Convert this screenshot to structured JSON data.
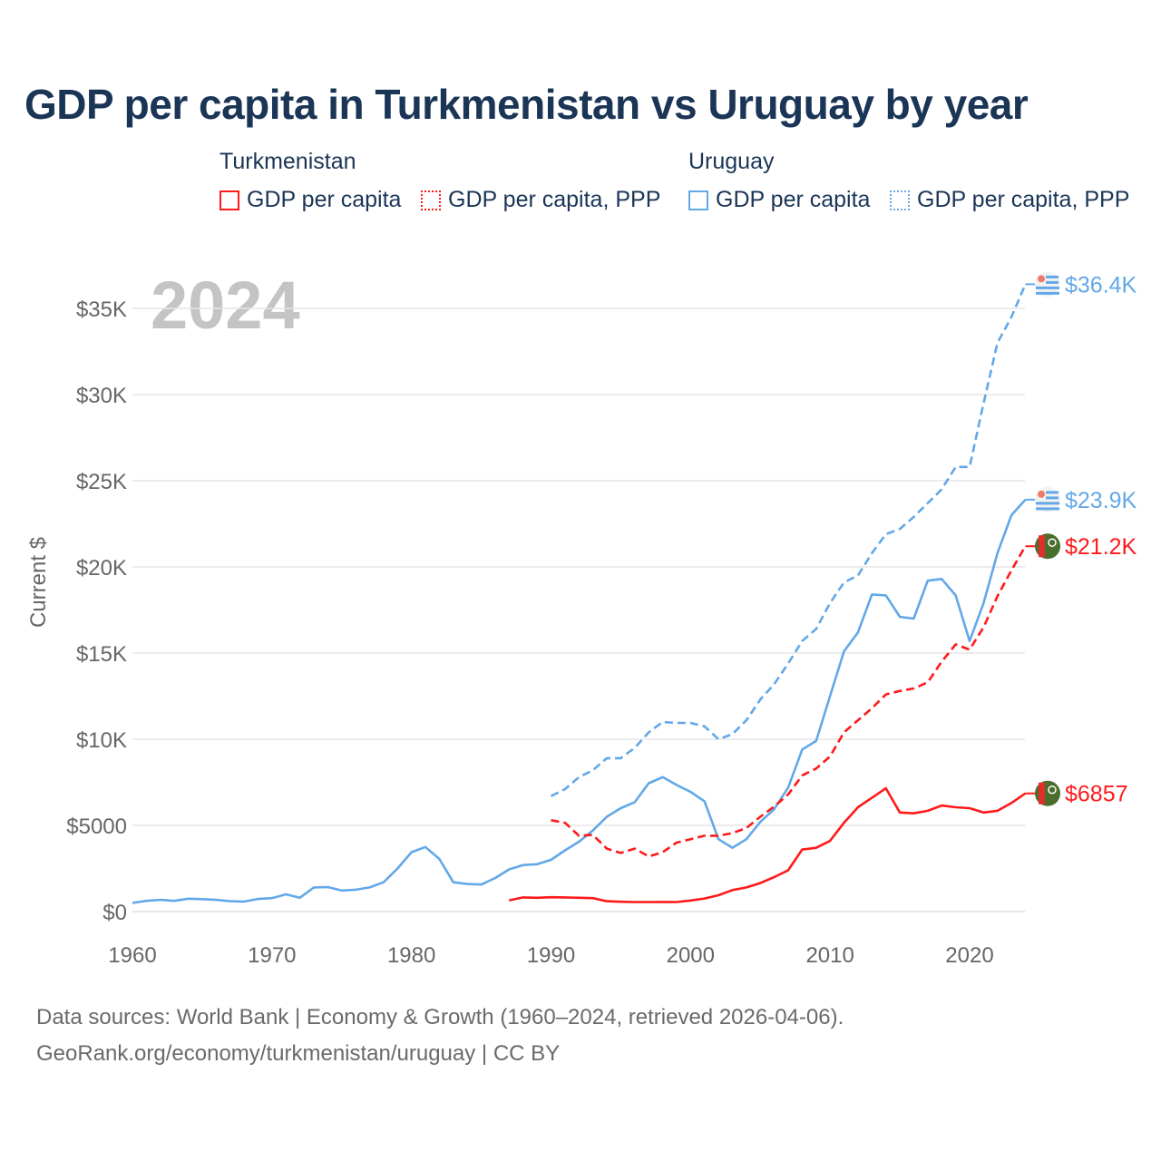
{
  "chart_data": {
    "type": "line",
    "title": "GDP per capita in Turkmenistan vs Uruguay by year",
    "ylabel": "Current $",
    "xlabel": "",
    "xlim": [
      1960,
      2024
    ],
    "ylim": [
      0,
      36400
    ],
    "year_watermark": "2024",
    "x_ticks": [
      "1960",
      "1970",
      "1980",
      "1990",
      "2000",
      "2010",
      "2020"
    ],
    "y_ticks": [
      {
        "value": 0,
        "label": "$0"
      },
      {
        "value": 5000,
        "label": "$5000"
      },
      {
        "value": 10000,
        "label": "$10K"
      },
      {
        "value": 15000,
        "label": "$15K"
      },
      {
        "value": 20000,
        "label": "$20K"
      },
      {
        "value": 25000,
        "label": "$25K"
      },
      {
        "value": 30000,
        "label": "$30K"
      },
      {
        "value": 35000,
        "label": "$35K"
      }
    ],
    "grid": true,
    "legend": {
      "groups": [
        {
          "country": "Turkmenistan",
          "items": [
            "GDP per capita",
            "GDP per capita, PPP"
          ]
        },
        {
          "country": "Uruguay",
          "items": [
            "GDP per capita",
            "GDP per capita, PPP"
          ]
        }
      ],
      "placement": "top"
    },
    "series": [
      {
        "name": "Uruguay GDP per capita",
        "country": "Uruguay",
        "color": "#62a8e8",
        "dashed": false,
        "end_label": "$23.9K",
        "start": 1960,
        "values": [
          500,
          620,
          680,
          620,
          750,
          720,
          680,
          600,
          580,
          730,
          780,
          1000,
          800,
          1400,
          1420,
          1220,
          1270,
          1400,
          1700,
          2500,
          3450,
          3750,
          3050,
          1700,
          1600,
          1570,
          1950,
          2450,
          2700,
          2750,
          3000,
          3550,
          4050,
          4700,
          5500,
          6000,
          6350,
          7450,
          7800,
          7350,
          6950,
          6400,
          4200,
          3700,
          4200,
          5200,
          5950,
          7200,
          9400,
          9900,
          12500,
          15100,
          16200,
          18400,
          18350,
          17100,
          17000,
          19200,
          19300,
          18350,
          15700,
          17900,
          20800,
          23000,
          23900
        ]
      },
      {
        "name": "Uruguay GDP per capita, PPP",
        "country": "Uruguay",
        "color": "#62a8e8",
        "dashed": true,
        "end_label": "$36.4K",
        "start": 1990,
        "values": [
          6700,
          7100,
          7800,
          8200,
          8900,
          8900,
          9500,
          10400,
          11000,
          10950,
          10950,
          10750,
          10000,
          10300,
          11100,
          12300,
          13200,
          14400,
          15700,
          16400,
          17900,
          19100,
          19500,
          20800,
          21900,
          22200,
          22900,
          23700,
          24500,
          25800,
          25800,
          29500,
          33000,
          34500,
          36400
        ]
      },
      {
        "name": "Turkmenistan GDP per capita",
        "country": "Turkmenistan",
        "color": "#ff1a1a",
        "dashed": false,
        "end_label": "$6857",
        "start": 1987,
        "values": [
          650,
          820,
          800,
          830,
          820,
          800,
          780,
          600,
          570,
          550,
          550,
          560,
          550,
          640,
          760,
          950,
          1250,
          1400,
          1650,
          2000,
          2400,
          3600,
          3700,
          4100,
          5150,
          6050,
          6600,
          7150,
          5750,
          5700,
          5850,
          6150,
          6050,
          6000,
          5750,
          5850,
          6300,
          6857
        ]
      },
      {
        "name": "Turkmenistan GDP per capita, PPP",
        "country": "Turkmenistan",
        "color": "#ff1a1a",
        "dashed": true,
        "end_label": "$21.2K",
        "start": 1990,
        "values": [
          5300,
          5150,
          4400,
          4450,
          3650,
          3400,
          3650,
          3200,
          3450,
          4000,
          4200,
          4400,
          4400,
          4550,
          4850,
          5500,
          6100,
          6800,
          7900,
          8300,
          9000,
          10400,
          11100,
          11800,
          12600,
          12800,
          12950,
          13300,
          14500,
          15500,
          15200,
          16500,
          18300,
          19800,
          21200
        ]
      }
    ]
  },
  "footer": {
    "line1": "Data sources: World Bank | Economy & Growth (1960–2024, retrieved 2026-04-06).",
    "line2": "GeoRank.org/economy/turkmenistan/uruguay | CC BY"
  }
}
